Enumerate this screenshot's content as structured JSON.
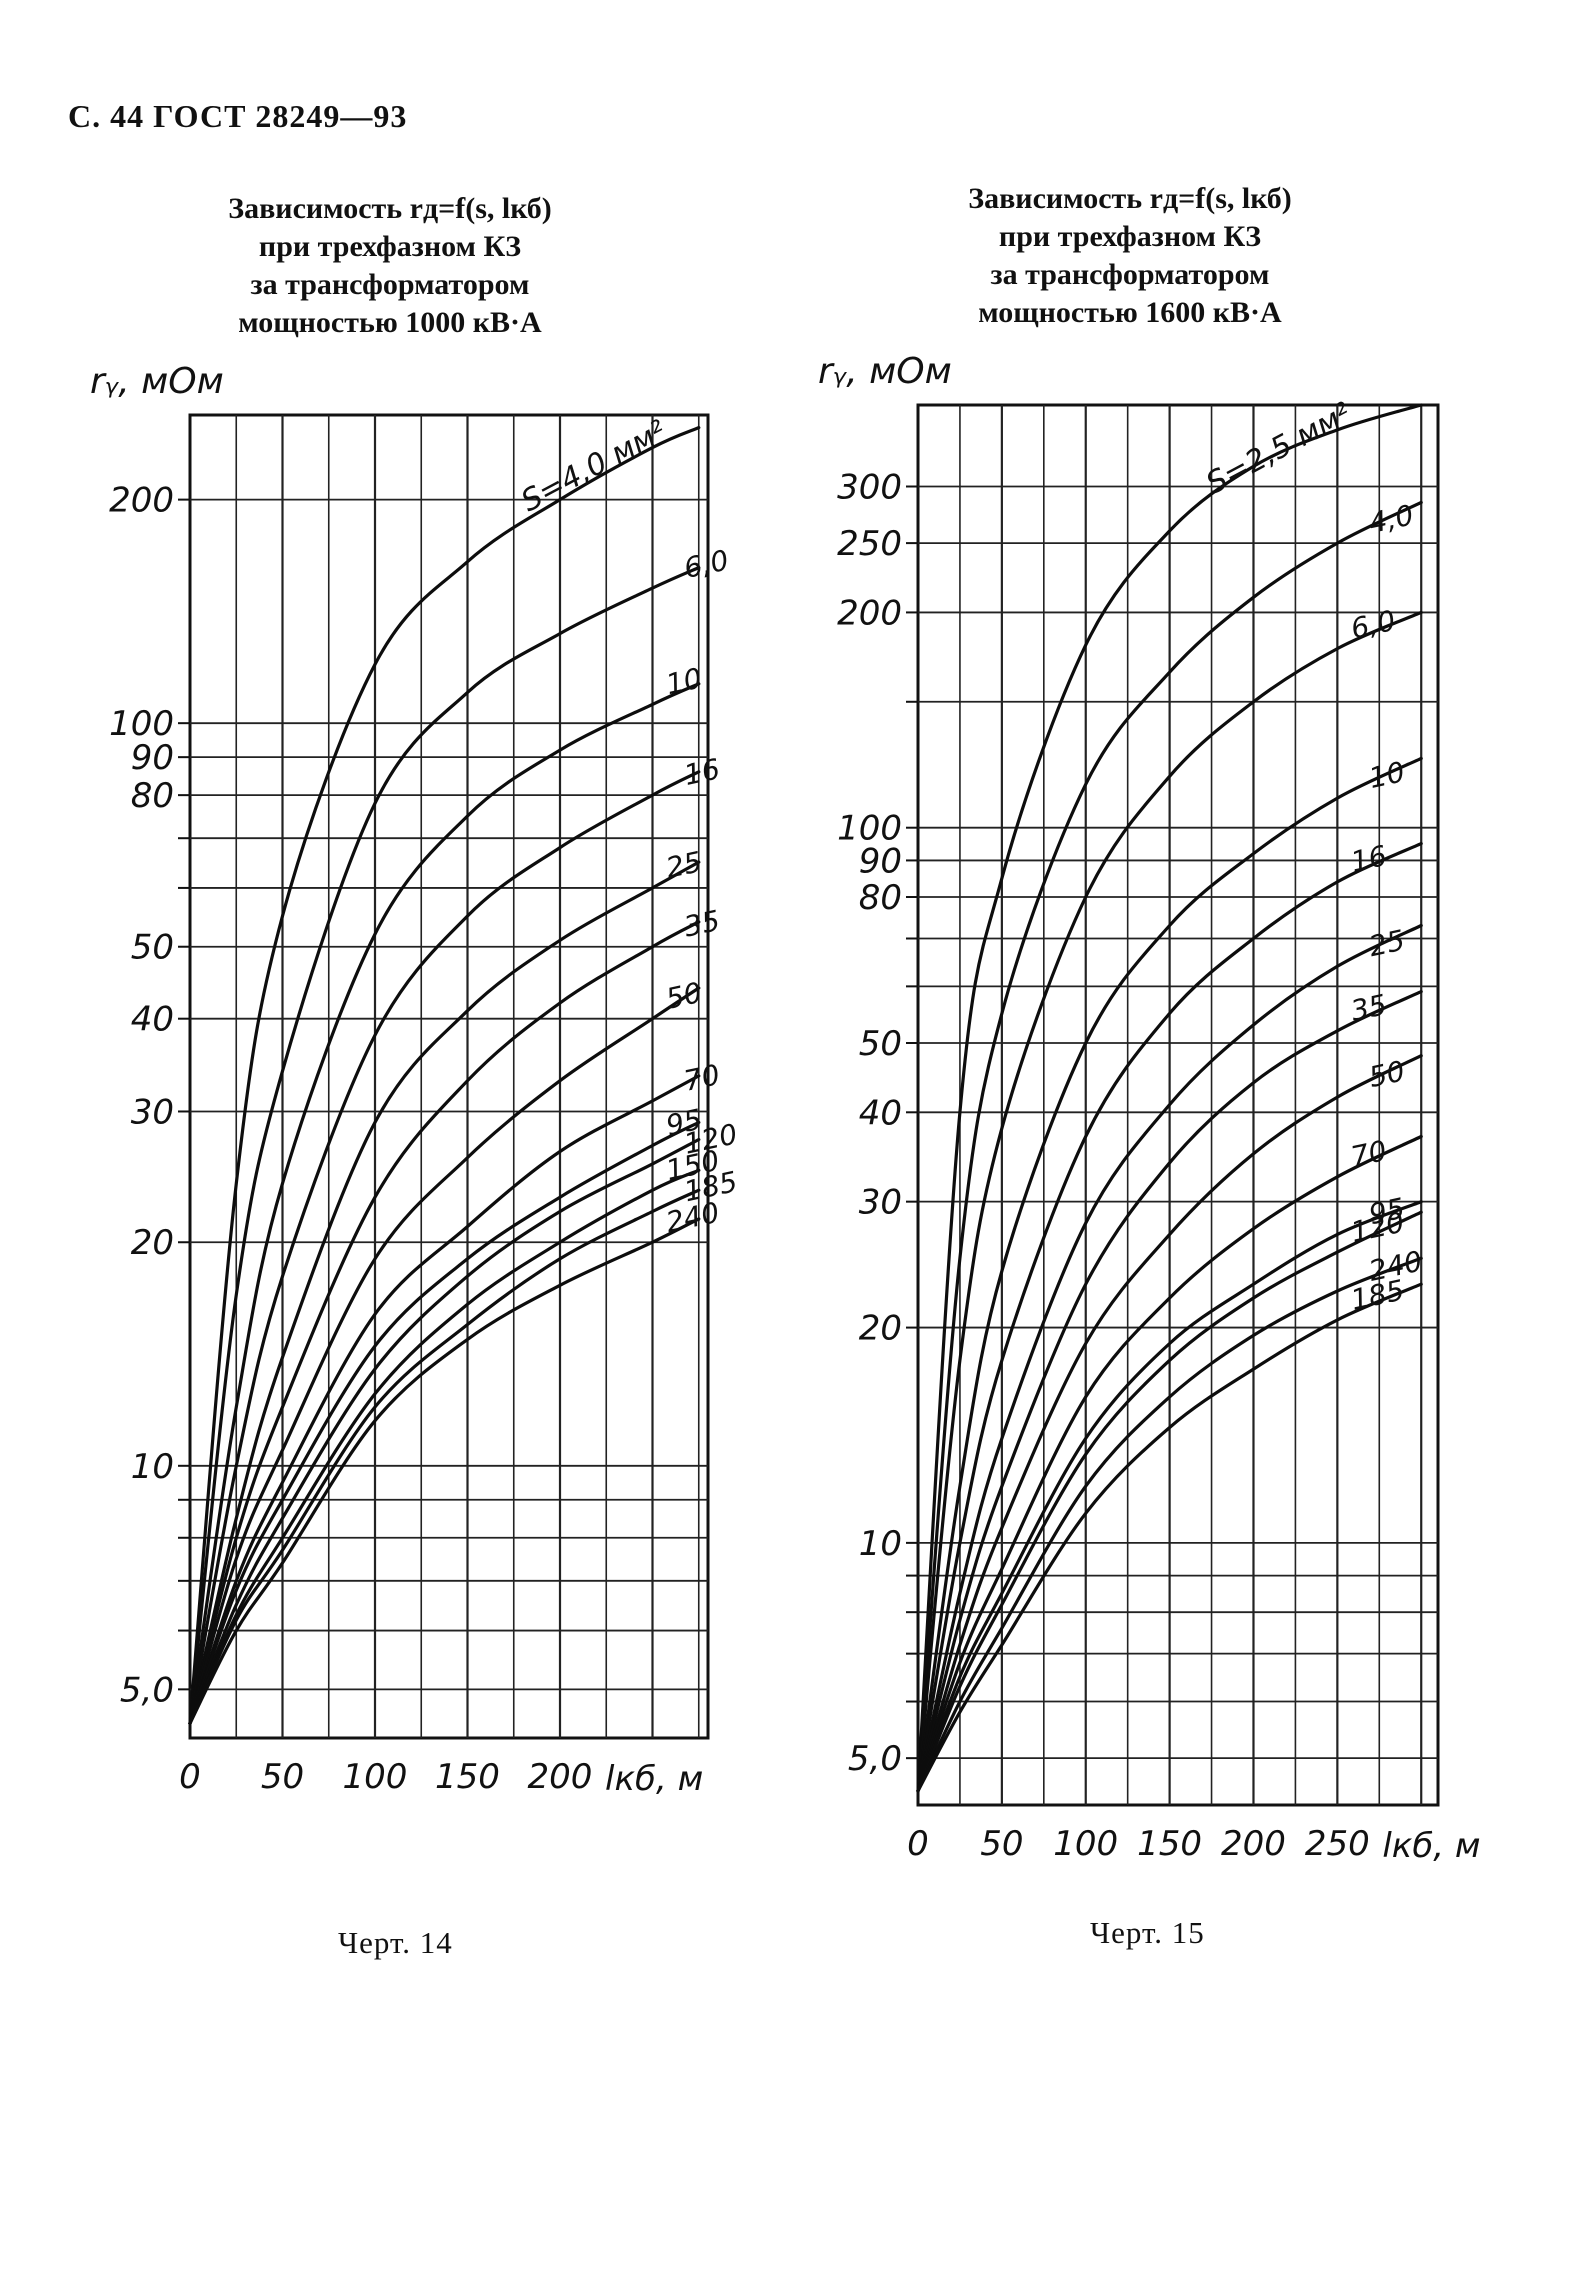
{
  "page_header": "С. 44 ГОСТ 28249—93",
  "charts": [
    {
      "title_lines": [
        "Зависимость rд=f(s, lкб)",
        "при трехфазном КЗ",
        "за трансформатором",
        "мощностью 1000 кВ·А"
      ],
      "ylabel": "rᵧ, мОм",
      "xlabel": "lкб, м",
      "caption": "Черт. 14",
      "s_unit_label": "S=4,0 мм²"
    },
    {
      "title_lines": [
        "Зависимость rд=f(s, lкб)",
        "при трехфазном КЗ",
        "за трансформатором",
        "мощностью 1600 кВ·А"
      ],
      "ylabel": "rᵧ, мОм",
      "xlabel": "lкб, м",
      "caption": "Черт. 15",
      "s_unit_label": "S=2,5 мм²"
    }
  ],
  "chart_data": [
    {
      "type": "line",
      "title": "Зависимость rд=f(s, lкб) при трехфазном КЗ за трансформатором мощностью 1000 кВ·А",
      "xlabel": "lкб, м",
      "ylabel": "rд, мОм",
      "y_scale": "log",
      "xlim": [
        0,
        280
      ],
      "ylim": [
        4.3,
        260
      ],
      "grid": true,
      "x_ticks": [
        0,
        50,
        100,
        150,
        200
      ],
      "x_tick_labels": [
        "0",
        "50",
        "100",
        "150",
        "200"
      ],
      "y_ticks": [
        5,
        10,
        20,
        30,
        40,
        50,
        80,
        90,
        100,
        200
      ],
      "y_tick_labels": [
        "5,0",
        "10",
        "20",
        "30",
        "40",
        "50",
        "80",
        "90",
        "100",
        "200"
      ],
      "x": [
        0,
        25,
        50,
        100,
        150,
        200,
        250,
        275
      ],
      "series": [
        {
          "name": "4,0",
          "values": [
            4.5,
            24,
            55,
            120,
            165,
            200,
            235,
            250
          ]
        },
        {
          "name": "6,0",
          "values": [
            4.5,
            17,
            34,
            78,
            110,
            132,
            152,
            162
          ]
        },
        {
          "name": "10",
          "values": [
            4.5,
            12,
            24,
            52,
            75,
            92,
            106,
            113
          ]
        },
        {
          "name": "16",
          "values": [
            4.5,
            10,
            18,
            38,
            55,
            68,
            80,
            86
          ]
        },
        {
          "name": "25",
          "values": [
            4.5,
            8.5,
            14,
            29,
            41,
            51,
            60,
            65
          ]
        },
        {
          "name": "35",
          "values": [
            4.5,
            8,
            12,
            23,
            33,
            42,
            50,
            54
          ]
        },
        {
          "name": "50",
          "values": [
            4.5,
            7.5,
            10.5,
            19,
            26,
            33,
            40,
            44
          ]
        },
        {
          "name": "70",
          "values": [
            4.5,
            7,
            9.5,
            16,
            21,
            26.5,
            31,
            33.5
          ]
        },
        {
          "name": "95",
          "values": [
            4.5,
            6.8,
            9,
            14.5,
            19,
            23,
            27,
            29
          ]
        },
        {
          "name": "120",
          "values": [
            4.5,
            6.5,
            8.5,
            13.5,
            18,
            22,
            25.5,
            27.5
          ]
        },
        {
          "name": "150",
          "values": [
            4.5,
            6.3,
            8,
            12.5,
            16.5,
            20,
            23.5,
            25
          ]
        },
        {
          "name": "185",
          "values": [
            4.5,
            6.2,
            7.7,
            12,
            15.5,
            19,
            22,
            23.5
          ]
        },
        {
          "name": "240",
          "values": [
            4.5,
            6,
            7.4,
            11.5,
            14.8,
            17.5,
            20,
            21.5
          ]
        }
      ]
    },
    {
      "type": "line",
      "title": "Зависимость rд=f(s, lкб) при трехфазном КЗ за трансформатором мощностью 1600 кВ·А",
      "xlabel": "lкб, м",
      "ylabel": "rд, мОм",
      "y_scale": "log",
      "xlim": [
        0,
        310
      ],
      "ylim": [
        4.3,
        390
      ],
      "grid": true,
      "x_ticks": [
        0,
        50,
        100,
        150,
        200,
        250
      ],
      "x_tick_labels": [
        "0",
        "50",
        "100",
        "150",
        "200",
        "250"
      ],
      "y_ticks": [
        5,
        10,
        20,
        30,
        40,
        50,
        80,
        90,
        100,
        200,
        250,
        300
      ],
      "y_tick_labels": [
        "5,0",
        "10",
        "20",
        "30",
        "40",
        "50",
        "80",
        "90",
        "100",
        "200",
        "250",
        "300"
      ],
      "x": [
        0,
        25,
        50,
        100,
        150,
        200,
        250,
        300
      ],
      "series": [
        {
          "name": "2,5",
          "values": [
            4.5,
            40,
            85,
            180,
            260,
            320,
            360,
            390
          ]
        },
        {
          "name": "4,0",
          "values": [
            4.5,
            25,
            55,
            115,
            165,
            210,
            250,
            285
          ]
        },
        {
          "name": "6,0",
          "values": [
            4.5,
            18,
            38,
            80,
            118,
            150,
            178,
            200
          ]
        },
        {
          "name": "10",
          "values": [
            4.5,
            12,
            24,
            50,
            73,
            92,
            110,
            125
          ]
        },
        {
          "name": "16",
          "values": [
            4.5,
            10,
            18,
            37,
            55,
            70,
            84,
            95
          ]
        },
        {
          "name": "25",
          "values": [
            4.5,
            8.5,
            14,
            28,
            41,
            53,
            64,
            73
          ]
        },
        {
          "name": "35",
          "values": [
            4.5,
            7.8,
            12,
            23,
            34,
            44,
            52,
            59
          ]
        },
        {
          "name": "50",
          "values": [
            4.5,
            7.2,
            10.5,
            19,
            27,
            35,
            42,
            48
          ]
        },
        {
          "name": "70",
          "values": [
            4.5,
            6.8,
            9.2,
            16,
            22,
            27.5,
            32.5,
            37
          ]
        },
        {
          "name": "95",
          "values": [
            4.5,
            6.5,
            8.5,
            14,
            19,
            23,
            27,
            30
          ]
        },
        {
          "name": "120",
          "values": [
            4.5,
            6.3,
            8.2,
            13.3,
            18,
            22,
            25.5,
            29
          ]
        },
        {
          "name": "240",
          "values": [
            4.5,
            6,
            7.6,
            12,
            16,
            19.5,
            22.5,
            25
          ]
        },
        {
          "name": "185",
          "values": [
            4.5,
            5.8,
            7.2,
            11,
            14.5,
            17.5,
            20.5,
            23
          ]
        }
      ]
    }
  ]
}
